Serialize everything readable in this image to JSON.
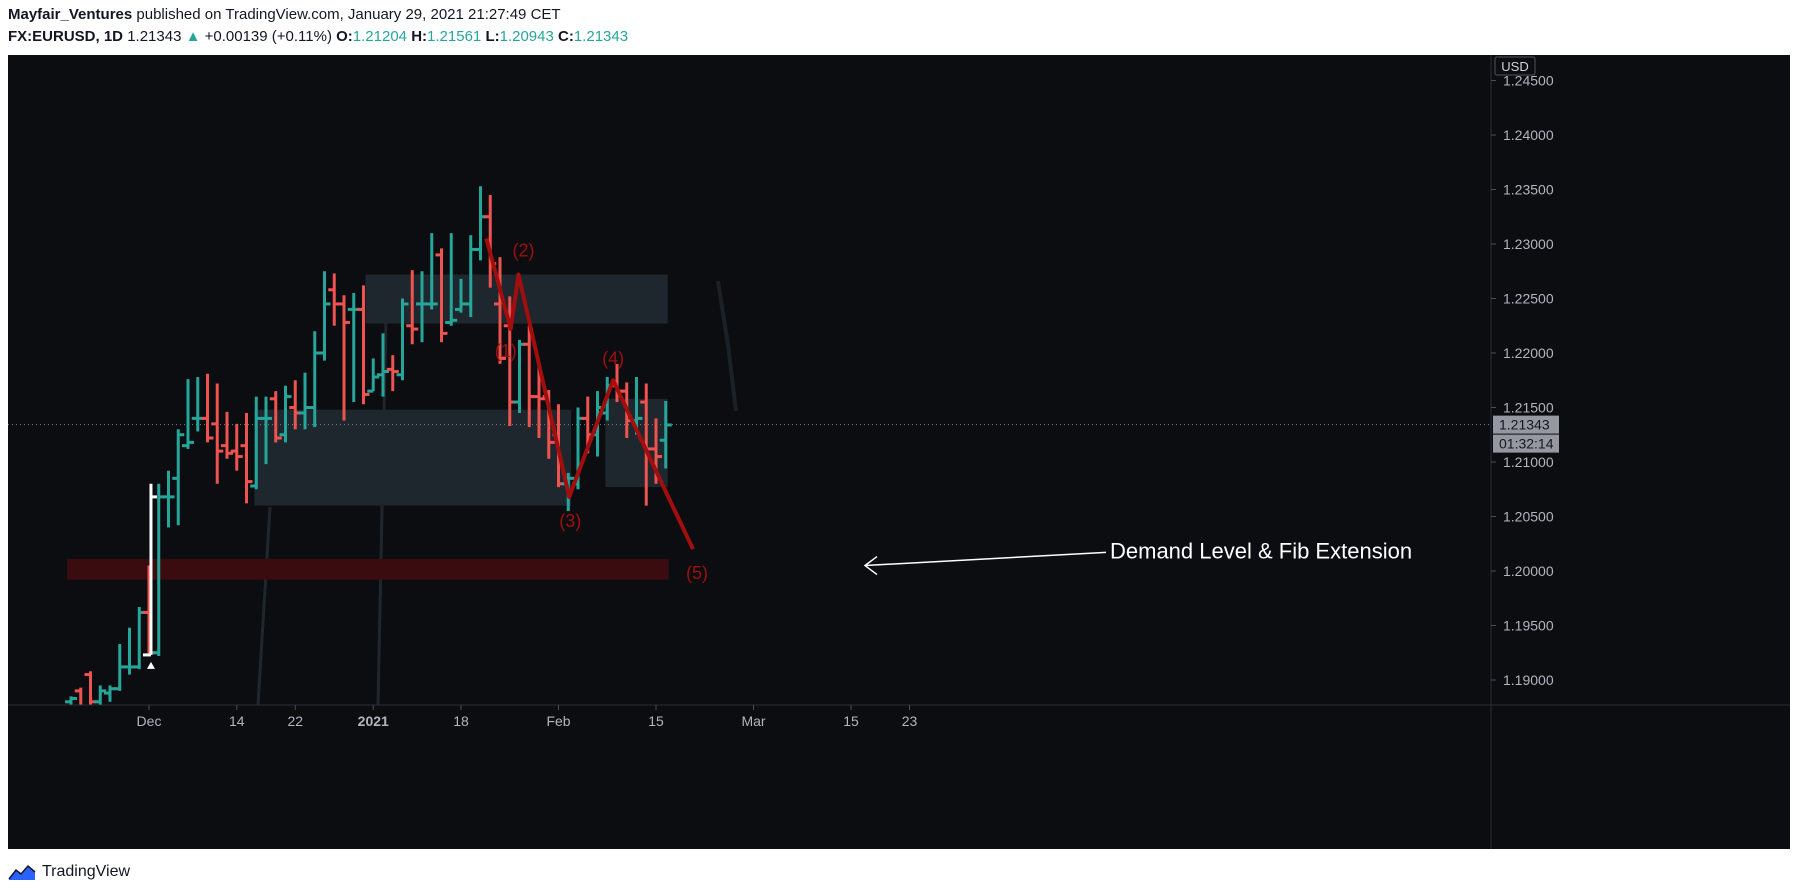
{
  "header": {
    "author": "Mayfair_Ventures",
    "published": " published on TradingView.com, January 29, 2021 21:27:49 CET",
    "symbol": "FX:EURUSD, 1D",
    "last": "1.21343",
    "change": "+0.00139 (+0.11%)",
    "open_label": "O:",
    "open": "1.21204",
    "high_label": "H:",
    "high": "1.21561",
    "low_label": "L:",
    "low": "1.20943",
    "close_label": "C:",
    "close": "1.21343"
  },
  "colors": {
    "background": "#0b0d10",
    "up": "#26a69a",
    "down": "#ef5350",
    "wave": "#a10e0e",
    "zone": "#1f2a31",
    "demand": "#3a0c0f"
  },
  "footer": {
    "brand": "TradingView"
  },
  "chart_data": {
    "type": "ohlc",
    "currency": "USD",
    "ylim": [
      1.1875,
      1.2475
    ],
    "y_ticks": [
      "1.19000",
      "1.19500",
      "1.20000",
      "1.20500",
      "1.21000",
      "1.21500",
      "1.22000",
      "1.22500",
      "1.23000",
      "1.23500",
      "1.24000",
      "1.24500"
    ],
    "x_ticks": [
      {
        "label": "Dec",
        "day": 0
      },
      {
        "label": "14",
        "day": 9
      },
      {
        "label": "22",
        "day": 15
      },
      {
        "label": "2021",
        "day": 23
      },
      {
        "label": "18",
        "day": 32
      },
      {
        "label": "Feb",
        "day": 42
      },
      {
        "label": "15",
        "day": 52
      },
      {
        "label": "Mar",
        "day": 62
      },
      {
        "label": "15",
        "day": 72
      },
      {
        "label": "23",
        "day": 78
      }
    ],
    "last_price_label": "1.21343",
    "countdown_label": "01:32:14",
    "last_price": 1.21343,
    "bars": [
      {
        "d": -8,
        "o": 1.188,
        "h": 1.1885,
        "l": 1.187,
        "c": 1.1883
      },
      {
        "d": -7,
        "o": 1.189,
        "h": 1.1893,
        "l": 1.1868,
        "c": 1.1872
      },
      {
        "d": -6,
        "o": 1.1905,
        "h": 1.1908,
        "l": 1.1875,
        "c": 1.188
      },
      {
        "d": -5,
        "o": 1.188,
        "h": 1.1895,
        "l": 1.1875,
        "c": 1.189
      },
      {
        "d": -4,
        "o": 1.1888,
        "h": 1.1895,
        "l": 1.188,
        "c": 1.1892
      },
      {
        "d": -3,
        "o": 1.1892,
        "h": 1.1933,
        "l": 1.189,
        "c": 1.1912
      },
      {
        "d": -2,
        "o": 1.1912,
        "h": 1.1948,
        "l": 1.1905,
        "c": 1.1912
      },
      {
        "d": -1,
        "o": 1.1912,
        "h": 1.1967,
        "l": 1.191,
        "c": 1.1962
      },
      {
        "d": 0,
        "o": 1.1962,
        "h": 1.2005,
        "l": 1.1922,
        "c": 1.1925
      },
      {
        "d": 1,
        "o": 1.1925,
        "h": 1.208,
        "l": 1.1922,
        "c": 1.2068
      },
      {
        "d": 2,
        "o": 1.2068,
        "h": 1.2092,
        "l": 1.204,
        "c": 1.2068
      },
      {
        "d": 3,
        "o": 1.2085,
        "h": 1.213,
        "l": 1.2042,
        "c": 1.2125
      },
      {
        "d": 4,
        "o": 1.2115,
        "h": 1.2176,
        "l": 1.2112,
        "c": 1.2118
      },
      {
        "d": 5,
        "o": 1.214,
        "h": 1.2178,
        "l": 1.2128,
        "c": 1.214
      },
      {
        "d": 6,
        "o": 1.214,
        "h": 1.2181,
        "l": 1.2118,
        "c": 1.2122
      },
      {
        "d": 7,
        "o": 1.2135,
        "h": 1.2172,
        "l": 1.208,
        "c": 1.211
      },
      {
        "d": 8,
        "o": 1.2115,
        "h": 1.2146,
        "l": 1.2103,
        "c": 1.2108
      },
      {
        "d": 9,
        "o": 1.211,
        "h": 1.2135,
        "l": 1.2092,
        "c": 1.2105
      },
      {
        "d": 10,
        "o": 1.2115,
        "h": 1.2145,
        "l": 1.2062,
        "c": 1.2082
      },
      {
        "d": 11,
        "o": 1.2078,
        "h": 1.216,
        "l": 1.2075,
        "c": 1.214
      },
      {
        "d": 12,
        "o": 1.214,
        "h": 1.216,
        "l": 1.2098,
        "c": 1.214
      },
      {
        "d": 13,
        "o": 1.2158,
        "h": 1.2165,
        "l": 1.2118,
        "c": 1.2122
      },
      {
        "d": 14,
        "o": 1.2125,
        "h": 1.217,
        "l": 1.2118,
        "c": 1.216
      },
      {
        "d": 15,
        "o": 1.215,
        "h": 1.2175,
        "l": 1.213,
        "c": 1.2145
      },
      {
        "d": 16,
        "o": 1.2145,
        "h": 1.2182,
        "l": 1.213,
        "c": 1.215
      },
      {
        "d": 17,
        "o": 1.215,
        "h": 1.222,
        "l": 1.2132,
        "c": 1.22
      },
      {
        "d": 18,
        "o": 1.22,
        "h": 1.2275,
        "l": 1.2193,
        "c": 1.2245
      },
      {
        "d": 19,
        "o": 1.2258,
        "h": 1.2273,
        "l": 1.2225,
        "c": 1.2245
      },
      {
        "d": 20,
        "o": 1.2245,
        "h": 1.2253,
        "l": 1.2138,
        "c": 1.2228
      },
      {
        "d": 21,
        "o": 1.224,
        "h": 1.2255,
        "l": 1.2155,
        "c": 1.224
      },
      {
        "d": 22,
        "o": 1.224,
        "h": 1.2262,
        "l": 1.2153,
        "c": 1.2162
      },
      {
        "d": 23,
        "o": 1.2165,
        "h": 1.2195,
        "l": 1.2165,
        "c": 1.2178
      },
      {
        "d": 24,
        "o": 1.218,
        "h": 1.2218,
        "l": 1.216,
        "c": 1.2183
      },
      {
        "d": 25,
        "o": 1.2185,
        "h": 1.2198,
        "l": 1.2165,
        "c": 1.2183
      },
      {
        "d": 26,
        "o": 1.218,
        "h": 1.225,
        "l": 1.2175,
        "c": 1.2245
      },
      {
        "d": 27,
        "o": 1.2225,
        "h": 1.2276,
        "l": 1.2208,
        "c": 1.2222
      },
      {
        "d": 28,
        "o": 1.2245,
        "h": 1.2275,
        "l": 1.221,
        "c": 1.2245
      },
      {
        "d": 29,
        "o": 1.2245,
        "h": 1.231,
        "l": 1.224,
        "c": 1.2245
      },
      {
        "d": 30,
        "o": 1.229,
        "h": 1.2296,
        "l": 1.221,
        "c": 1.2218
      },
      {
        "d": 31,
        "o": 1.2228,
        "h": 1.231,
        "l": 1.2225,
        "c": 1.223
      },
      {
        "d": 32,
        "o": 1.224,
        "h": 1.2268,
        "l": 1.2237,
        "c": 1.2245
      },
      {
        "d": 33,
        "o": 1.2245,
        "h": 1.2308,
        "l": 1.2233,
        "c": 1.2295
      },
      {
        "d": 34,
        "o": 1.2295,
        "h": 1.2353,
        "l": 1.2285,
        "c": 1.2325
      },
      {
        "d": 35,
        "o": 1.2325,
        "h": 1.2345,
        "l": 1.226,
        "c": 1.2282
      },
      {
        "d": 36,
        "o": 1.2245,
        "h": 1.2288,
        "l": 1.219,
        "c": 1.2195
      },
      {
        "d": 37,
        "o": 1.2225,
        "h": 1.2252,
        "l": 1.2133,
        "c": 1.2155
      },
      {
        "d": 38,
        "o": 1.2155,
        "h": 1.2212,
        "l": 1.2145,
        "c": 1.2208
      },
      {
        "d": 39,
        "o": 1.2208,
        "h": 1.2225,
        "l": 1.2132,
        "c": 1.216
      },
      {
        "d": 40,
        "o": 1.216,
        "h": 1.2188,
        "l": 1.2122,
        "c": 1.2158
      },
      {
        "d": 41,
        "o": 1.216,
        "h": 1.2166,
        "l": 1.2103,
        "c": 1.2118
      },
      {
        "d": 42,
        "o": 1.2125,
        "h": 1.2153,
        "l": 1.2077,
        "c": 1.208
      },
      {
        "d": 43,
        "o": 1.208,
        "h": 1.209,
        "l": 1.2055,
        "c": 1.2085
      },
      {
        "d": 44,
        "o": 1.208,
        "h": 1.215,
        "l": 1.2075,
        "c": 1.214
      },
      {
        "d": 45,
        "o": 1.214,
        "h": 1.216,
        "l": 1.2108,
        "c": 1.2125
      },
      {
        "d": 46,
        "o": 1.2125,
        "h": 1.2165,
        "l": 1.2105,
        "c": 1.215
      },
      {
        "d": 47,
        "o": 1.2145,
        "h": 1.2178,
        "l": 1.2138,
        "c": 1.217
      },
      {
        "d": 48,
        "o": 1.217,
        "h": 1.219,
        "l": 1.2155,
        "c": 1.2165
      },
      {
        "d": 49,
        "o": 1.2165,
        "h": 1.2173,
        "l": 1.2122,
        "c": 1.2138
      },
      {
        "d": 50,
        "o": 1.2138,
        "h": 1.2178,
        "l": 1.2125,
        "c": 1.214
      },
      {
        "d": 51,
        "o": 1.2155,
        "h": 1.2172,
        "l": 1.206,
        "c": 1.2112
      },
      {
        "d": 52,
        "o": 1.2112,
        "h": 1.214,
        "l": 1.208,
        "c": 1.2105
      },
      {
        "d": 53,
        "o": 1.212,
        "h": 1.2156,
        "l": 1.2094,
        "c": 1.2134
      }
    ],
    "wave": [
      {
        "d": 34.6,
        "y": 1.2305,
        "label": ""
      },
      {
        "d": 37.1,
        "y": 1.2222,
        "label": "(1)"
      },
      {
        "d": 37.9,
        "y": 1.2272,
        "label": "(2)"
      },
      {
        "d": 43.1,
        "y": 1.2068,
        "label": "(3)"
      },
      {
        "d": 47.6,
        "y": 1.2175,
        "label": "(4)"
      },
      {
        "d": 55.8,
        "y": 1.202,
        "label": "(5)"
      }
    ],
    "zones": [
      {
        "d1": 10.8,
        "d2": 43.3,
        "y1": 1.206,
        "y2": 1.2148
      },
      {
        "d1": 22.2,
        "d2": 53.2,
        "y1": 1.2227,
        "y2": 1.2272
      },
      {
        "d1": 46.8,
        "d2": 53.2,
        "y1": 1.2077,
        "y2": 1.2158
      }
    ],
    "demand": {
      "d1": -8.4,
      "d2": 53.3,
      "y1": 1.1992,
      "y2": 1.2011
    },
    "annotation": {
      "text": "Demand Level & Fib Extension",
      "d": 59.0,
      "y": 1.2018
    }
  }
}
